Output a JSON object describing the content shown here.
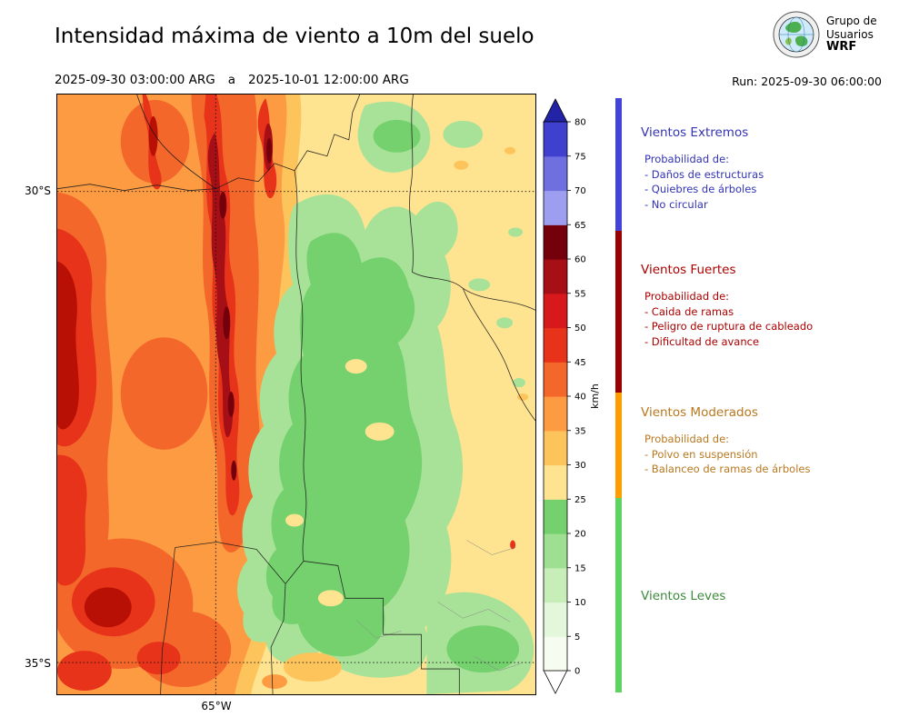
{
  "header": {
    "title": "Intensidad máxima de viento a 10m del suelo",
    "period": {
      "start": "2025-09-30 03:00:00 ARG",
      "separator": "a",
      "end": "2025-10-01 12:00:00 ARG"
    },
    "run_label": "Run: 2025-09-30 06:00:00",
    "logo": {
      "line1": "Grupo de",
      "line2": "Usuarios",
      "line3": "WRF"
    }
  },
  "map": {
    "y_axis_labels": [
      "30°S",
      "35°S"
    ],
    "x_axis_labels": [
      "65°W"
    ]
  },
  "colorbar": {
    "unit": "km/h",
    "ticks": [
      0,
      5,
      10,
      15,
      20,
      25,
      30,
      35,
      40,
      45,
      50,
      55,
      60,
      65,
      70,
      75,
      80
    ],
    "segment_colors_bottom_to_top": [
      "#f7fcf0",
      "#e3f7da",
      "#c7edb8",
      "#9fdf92",
      "#74d16e",
      "#fee391",
      "#fdc45c",
      "#fd9b43",
      "#f4672a",
      "#e8331b",
      "#d7191c",
      "#a50f15",
      "#73000a",
      "#9e9ef0",
      "#6f6fe0",
      "#4040cf"
    ],
    "under_color": "#ffffff",
    "over_color": "#2323a8"
  },
  "legend": {
    "sections": [
      {
        "title": "Vientos Extremos",
        "color": "#3333b3",
        "bar_color": "#4343d9",
        "prob_label": "Probabilidad de:",
        "items": [
          "- Daños de estructuras",
          "- Quiebres de árboles",
          "- No circular"
        ]
      },
      {
        "title": "Vientos Fuertes",
        "color": "#aa0000",
        "bar_color": "#9b0000",
        "prob_label": "Probabilidad de:",
        "items": [
          "- Caida de ramas",
          "- Peligro de ruptura de cableado",
          "- Dificultad de avance"
        ]
      },
      {
        "title": "Vientos Moderados",
        "color": "#b87820",
        "bar_color": "#ff9d00",
        "prob_label": "Probabilidad de:",
        "items": [
          "- Polvo en suspensión",
          "- Balanceo de ramas de árboles"
        ]
      },
      {
        "title": "Vientos Leves",
        "color": "#3d8b3d",
        "bar_color": "#5fd35f",
        "prob_label": "",
        "items": []
      }
    ]
  },
  "chart_data": {
    "type": "heatmap",
    "title": "Intensidad máxima de viento a 10m del suelo",
    "period_start": "2025-09-30 03:00:00 ARG",
    "period_end": "2025-10-01 12:00:00 ARG",
    "run": "2025-09-30 06:00:00",
    "unit": "km/h",
    "colorbar_ticks": [
      0,
      5,
      10,
      15,
      20,
      25,
      30,
      35,
      40,
      45,
      50,
      55,
      60,
      65,
      70,
      75,
      80
    ],
    "colorbar_range": [
      0,
      80
    ],
    "lat_gridlines": [
      "30°S",
      "35°S"
    ],
    "lon_gridlines": [
      "65°W"
    ],
    "legend_categories": [
      {
        "label": "Vientos Leves",
        "range_kmh": [
          0,
          25
        ]
      },
      {
        "label": "Vientos Moderados",
        "range_kmh": [
          25,
          40
        ]
      },
      {
        "label": "Vientos Fuertes",
        "range_kmh": [
          40,
          65
        ]
      },
      {
        "label": "Vientos Extremos",
        "range_kmh": [
          65,
          85
        ]
      }
    ]
  }
}
